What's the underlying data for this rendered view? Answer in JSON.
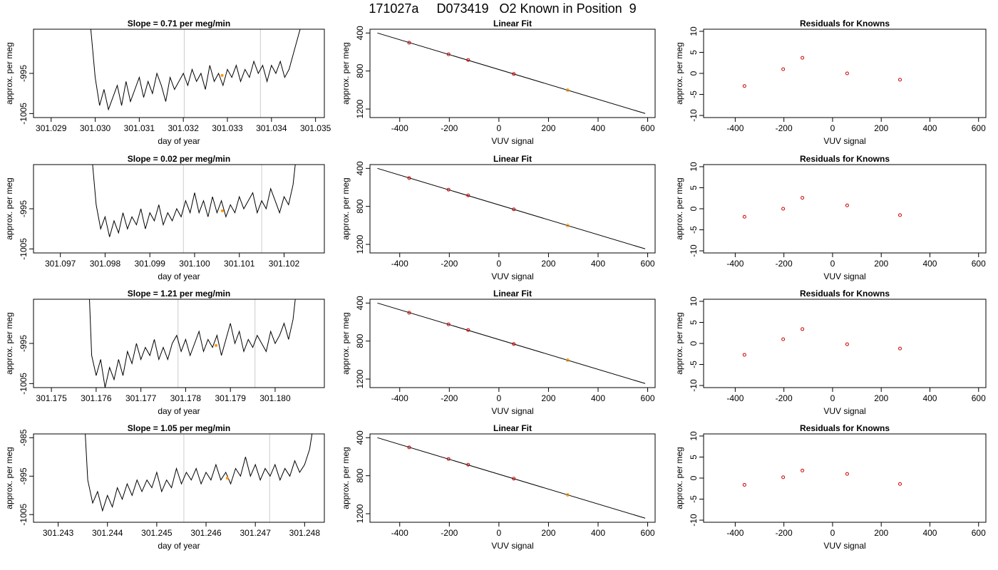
{
  "header": {
    "title": "171027a     D073419   O2 Known in Position  9"
  },
  "colors": {
    "frame": "#000000",
    "trace": "#000000",
    "fit_line": "#000000",
    "vertical_marker": "#cccccc",
    "known_points": "#cc0000",
    "highlight_point": "#ff9900"
  },
  "chart_data": [
    {
      "type": "line",
      "title": "Slope =  0.71  per meg/min",
      "xlabel": "day of year",
      "ylabel": "approx. per meg",
      "xlim": [
        301.0286,
        301.0352
      ],
      "ylim": [
        -1006,
        -984
      ],
      "xticks": [
        301.029,
        301.03,
        301.031,
        301.032,
        301.033,
        301.034,
        301.035
      ],
      "xtick_labels": [
        "301.029",
        "301.030",
        "301.031",
        "301.032",
        "301.033",
        "301.034",
        "301.035"
      ],
      "yticks": [
        -1005,
        -995
      ],
      "ytick_labels": [
        "-1005",
        "-995"
      ],
      "vlines": [
        301.03202,
        301.03375
      ],
      "highlight": {
        "x": 301.03288,
        "y": -995.5
      },
      "x": [
        301.0299,
        301.03,
        301.0301,
        301.0302,
        301.0303,
        301.0304,
        301.0305,
        301.0306,
        301.0307,
        301.0308,
        301.0309,
        301.031,
        301.0311,
        301.0312,
        301.0313,
        301.0314,
        301.0315,
        301.0316,
        301.0317,
        301.0318,
        301.0319,
        301.032,
        301.0321,
        301.0322,
        301.0323,
        301.0324,
        301.0325,
        301.0326,
        301.0327,
        301.0328,
        301.0329,
        301.033,
        301.0331,
        301.0332,
        301.0333,
        301.0334,
        301.0335,
        301.0336,
        301.0337,
        301.0338,
        301.0339,
        301.034,
        301.0341,
        301.0342,
        301.0343,
        301.0344,
        301.0345,
        301.0346,
        301.03465
      ],
      "y": [
        -984,
        -996,
        -1003,
        -999,
        -1004,
        -1001,
        -998,
        -1003,
        -997,
        -1002,
        -999,
        -996,
        -1001,
        -997,
        -1000,
        -995,
        -998,
        -1002,
        -996,
        -999,
        -997,
        -995,
        -998,
        -994,
        -997,
        -995,
        -999,
        -993,
        -997,
        -995,
        -998,
        -994,
        -996,
        -993,
        -997,
        -994,
        -996,
        -992,
        -995,
        -993,
        -997,
        -993,
        -995,
        -992,
        -996,
        -994,
        -990,
        -986,
        -984
      ]
    },
    {
      "type": "scatter",
      "title": "Linear Fit",
      "xlabel": "VUV signal",
      "ylabel": "approx. per meg",
      "xlim": [
        -520,
        630
      ],
      "ylim": [
        -1290,
        -360
      ],
      "xticks": [
        -400,
        -200,
        0,
        200,
        400,
        600
      ],
      "xtick_labels": [
        "-400",
        "-200",
        "0",
        "200",
        "400",
        "600"
      ],
      "yticks": [
        -1200,
        -800,
        -400
      ],
      "ytick_labels": [
        "1200",
        "800",
        "400"
      ],
      "fit_line": {
        "x": [
          -490,
          590
        ],
        "y": [
          -400,
          -1247
        ]
      },
      "points": [
        {
          "x": -362,
          "y": -502
        },
        {
          "x": -203,
          "y": -624
        },
        {
          "x": -124,
          "y": -684
        },
        {
          "x": 60,
          "y": -831
        },
        {
          "x": 277,
          "y": -1001,
          "highlight": true
        }
      ]
    },
    {
      "type": "scatter",
      "title": "Residuals for Knowns",
      "xlabel": "VUV signal",
      "ylabel": "approx. per meg",
      "xlim": [
        -530,
        630
      ],
      "ylim": [
        -10.5,
        10.5
      ],
      "xticks": [
        -400,
        -200,
        0,
        200,
        400,
        600
      ],
      "xtick_labels": [
        "-400",
        "-200",
        "0",
        "200",
        "400",
        "600"
      ],
      "yticks": [
        -10,
        -5,
        0,
        5,
        10
      ],
      "ytick_labels": [
        "-10",
        "-5",
        "0",
        "5",
        "10"
      ],
      "points": [
        {
          "x": -362,
          "y": -3.0
        },
        {
          "x": -203,
          "y": 1.0
        },
        {
          "x": -124,
          "y": 3.7
        },
        {
          "x": 60,
          "y": 0.0
        },
        {
          "x": 277,
          "y": -1.5
        }
      ]
    },
    {
      "type": "line",
      "title": "Slope =  0.02  per meg/min",
      "xlabel": "day of year",
      "ylabel": "approx. per meg",
      "xlim": [
        301.0964,
        301.1029
      ],
      "ylim": [
        -1006,
        -984
      ],
      "xticks": [
        301.097,
        301.098,
        301.099,
        301.1,
        301.101,
        301.102
      ],
      "xtick_labels": [
        "301.097",
        "301.098",
        "301.099",
        "301.100",
        "301.101",
        "301.102"
      ],
      "yticks": [
        -1005,
        -995
      ],
      "ytick_labels": [
        "-1005",
        "-995"
      ],
      "vlines": [
        301.09975,
        301.1015
      ],
      "highlight": {
        "x": 301.10062,
        "y": -995.5
      },
      "x": [
        301.09772,
        301.0978,
        301.0979,
        301.098,
        301.0981,
        301.0982,
        301.0983,
        301.0984,
        301.0985,
        301.0986,
        301.0987,
        301.0988,
        301.0989,
        301.099,
        301.0991,
        301.0992,
        301.0993,
        301.0994,
        301.0995,
        301.0996,
        301.0997,
        301.0998,
        301.0999,
        301.1,
        301.1001,
        301.1002,
        301.1003,
        301.1004,
        301.1005,
        301.1006,
        301.1007,
        301.1008,
        301.1009,
        301.101,
        301.1011,
        301.1012,
        301.1013,
        301.1014,
        301.1015,
        301.1016,
        301.1017,
        301.1018,
        301.1019,
        301.102,
        301.1021,
        301.1022,
        301.10225
      ],
      "y": [
        -984,
        -994,
        -1000,
        -997,
        -1002,
        -998,
        -1001,
        -996,
        -1000,
        -997,
        -999,
        -995,
        -1000,
        -996,
        -998,
        -994,
        -999,
        -996,
        -998,
        -995,
        -997,
        -993,
        -996,
        -991,
        -996,
        -993,
        -997,
        -992,
        -996,
        -993,
        -997,
        -994,
        -996,
        -992,
        -995,
        -993,
        -991,
        -996,
        -993,
        -995,
        -990,
        -993,
        -996,
        -992,
        -994,
        -989,
        -984
      ]
    },
    {
      "type": "scatter",
      "title": "Linear Fit",
      "xlabel": "VUV signal",
      "ylabel": "approx. per meg",
      "xlim": [
        -520,
        630
      ],
      "ylim": [
        -1290,
        -360
      ],
      "xticks": [
        -400,
        -200,
        0,
        200,
        400,
        600
      ],
      "xtick_labels": [
        "-400",
        "-200",
        "0",
        "200",
        "400",
        "600"
      ],
      "yticks": [
        -1200,
        -800,
        -400
      ],
      "ytick_labels": [
        "1200",
        "800",
        "400"
      ],
      "fit_line": {
        "x": [
          -490,
          590
        ],
        "y": [
          -400,
          -1247
        ]
      },
      "points": [
        {
          "x": -362,
          "y": -502
        },
        {
          "x": -203,
          "y": -624
        },
        {
          "x": -124,
          "y": -684
        },
        {
          "x": 60,
          "y": -831
        },
        {
          "x": 277,
          "y": -1001,
          "highlight": true
        }
      ]
    },
    {
      "type": "scatter",
      "title": "Residuals for Knowns",
      "xlabel": "VUV signal",
      "ylabel": "approx. per meg",
      "xlim": [
        -530,
        630
      ],
      "ylim": [
        -10.5,
        10.5
      ],
      "xticks": [
        -400,
        -200,
        0,
        200,
        400,
        600
      ],
      "xtick_labels": [
        "-400",
        "-200",
        "0",
        "200",
        "400",
        "600"
      ],
      "yticks": [
        -10,
        -5,
        0,
        5,
        10
      ],
      "ytick_labels": [
        "-10",
        "-5",
        "0",
        "5",
        "10"
      ],
      "points": [
        {
          "x": -362,
          "y": -1.9
        },
        {
          "x": -203,
          "y": 0.0
        },
        {
          "x": -124,
          "y": 2.6
        },
        {
          "x": 60,
          "y": 0.8
        },
        {
          "x": 277,
          "y": -1.5
        }
      ]
    },
    {
      "type": "line",
      "title": "Slope =  1.21  per meg/min",
      "xlabel": "day of year",
      "ylabel": "approx. per meg",
      "xlim": [
        301.1746,
        301.1811
      ],
      "ylim": [
        -1006,
        -984
      ],
      "xticks": [
        301.175,
        301.176,
        301.177,
        301.178,
        301.179,
        301.18
      ],
      "xtick_labels": [
        "301.175",
        "301.176",
        "301.177",
        "301.178",
        "301.179",
        "301.180"
      ],
      "yticks": [
        -1005,
        -995
      ],
      "ytick_labels": [
        "-1005",
        "-995"
      ],
      "vlines": [
        301.17783,
        301.17955
      ],
      "highlight": {
        "x": 301.17868,
        "y": -995.5
      },
      "x": [
        301.17585,
        301.1759,
        301.176,
        301.1761,
        301.1762,
        301.1763,
        301.1764,
        301.1765,
        301.1766,
        301.1767,
        301.1768,
        301.1769,
        301.177,
        301.1771,
        301.1772,
        301.1773,
        301.1774,
        301.1775,
        301.1776,
        301.1777,
        301.1778,
        301.1779,
        301.178,
        301.1781,
        301.1782,
        301.1783,
        301.1784,
        301.1785,
        301.1786,
        301.1787,
        301.1788,
        301.1789,
        301.179,
        301.1791,
        301.1792,
        301.1793,
        301.1794,
        301.1795,
        301.1796,
        301.1797,
        301.1798,
        301.1799,
        301.18,
        301.1801,
        301.1802,
        301.1803,
        301.1804,
        301.18045
      ],
      "y": [
        -984,
        -998,
        -1003,
        -999,
        -1006,
        -1001,
        -1004,
        -999,
        -1003,
        -997,
        -1000,
        -995,
        -999,
        -996,
        -998,
        -994,
        -999,
        -996,
        -999,
        -995,
        -993,
        -997,
        -994,
        -998,
        -995,
        -992,
        -997,
        -994,
        -996,
        -993,
        -998,
        -994,
        -990,
        -995,
        -992,
        -997,
        -994,
        -996,
        -993,
        -995,
        -997,
        -992,
        -995,
        -993,
        -990,
        -994,
        -989,
        -984
      ]
    },
    {
      "type": "scatter",
      "title": "Linear Fit",
      "xlabel": "VUV signal",
      "ylabel": "approx. per meg",
      "xlim": [
        -520,
        630
      ],
      "ylim": [
        -1290,
        -360
      ],
      "xticks": [
        -400,
        -200,
        0,
        200,
        400,
        600
      ],
      "xtick_labels": [
        "-400",
        "-200",
        "0",
        "200",
        "400",
        "600"
      ],
      "yticks": [
        -1200,
        -800,
        -400
      ],
      "ytick_labels": [
        "1200",
        "800",
        "400"
      ],
      "fit_line": {
        "x": [
          -490,
          590
        ],
        "y": [
          -400,
          -1247
        ]
      },
      "points": [
        {
          "x": -362,
          "y": -502
        },
        {
          "x": -203,
          "y": -624
        },
        {
          "x": -124,
          "y": -684
        },
        {
          "x": 60,
          "y": -831
        },
        {
          "x": 277,
          "y": -1001,
          "highlight": true
        }
      ]
    },
    {
      "type": "scatter",
      "title": "Residuals for Knowns",
      "xlabel": "VUV signal",
      "ylabel": "approx. per meg",
      "xlim": [
        -530,
        630
      ],
      "ylim": [
        -10.5,
        10.5
      ],
      "xticks": [
        -400,
        -200,
        0,
        200,
        400,
        600
      ],
      "xtick_labels": [
        "-400",
        "-200",
        "0",
        "200",
        "400",
        "600"
      ],
      "yticks": [
        -10,
        -5,
        0,
        5,
        10
      ],
      "ytick_labels": [
        "-10",
        "-5",
        "0",
        "5",
        "10"
      ],
      "points": [
        {
          "x": -362,
          "y": -2.7
        },
        {
          "x": -203,
          "y": 1.0
        },
        {
          "x": -124,
          "y": 3.4
        },
        {
          "x": 60,
          "y": -0.2
        },
        {
          "x": 277,
          "y": -1.2
        }
      ]
    },
    {
      "type": "line",
      "title": "Slope =  1.05  per meg/min",
      "xlabel": "day of year",
      "ylabel": "approx. per meg",
      "xlim": [
        301.2425,
        301.2484
      ],
      "ylim": [
        -1007,
        -984
      ],
      "xticks": [
        301.243,
        301.244,
        301.245,
        301.246,
        301.247,
        301.248
      ],
      "xtick_labels": [
        "301.243",
        "301.244",
        "301.245",
        "301.246",
        "301.247",
        "301.248"
      ],
      "yticks": [
        -1005,
        -995,
        -985
      ],
      "ytick_labels": [
        "-1005",
        "-995",
        "-985"
      ],
      "vlines": [
        301.24555,
        301.24729
      ],
      "highlight": {
        "x": 301.24643,
        "y": -995.5
      },
      "x": [
        301.24355,
        301.2436,
        301.2437,
        301.2438,
        301.2439,
        301.244,
        301.2441,
        301.2442,
        301.2443,
        301.2444,
        301.2445,
        301.2446,
        301.2447,
        301.2448,
        301.2449,
        301.245,
        301.2451,
        301.2452,
        301.2453,
        301.2454,
        301.2455,
        301.2456,
        301.2457,
        301.2458,
        301.2459,
        301.246,
        301.2461,
        301.2462,
        301.2463,
        301.2464,
        301.2465,
        301.2466,
        301.2467,
        301.2468,
        301.2469,
        301.247,
        301.2471,
        301.2472,
        301.2473,
        301.2474,
        301.2475,
        301.2476,
        301.2477,
        301.2478,
        301.2479,
        301.248,
        301.2481,
        301.24815
      ],
      "y": [
        -984,
        -996,
        -1002,
        -999,
        -1004,
        -1000,
        -1003,
        -998,
        -1001,
        -997,
        -1000,
        -996,
        -999,
        -996,
        -998,
        -994,
        -999,
        -996,
        -998,
        -993,
        -997,
        -994,
        -996,
        -993,
        -997,
        -994,
        -996,
        -992,
        -996,
        -994,
        -997,
        -993,
        -995,
        -990,
        -995,
        -992,
        -996,
        -993,
        -995,
        -992,
        -996,
        -993,
        -995,
        -991,
        -994,
        -992,
        -988,
        -984
      ]
    },
    {
      "type": "scatter",
      "title": "Linear Fit",
      "xlabel": "VUV signal",
      "ylabel": "approx. per meg",
      "xlim": [
        -520,
        630
      ],
      "ylim": [
        -1290,
        -360
      ],
      "xticks": [
        -400,
        -200,
        0,
        200,
        400,
        600
      ],
      "xtick_labels": [
        "-400",
        "-200",
        "0",
        "200",
        "400",
        "600"
      ],
      "yticks": [
        -1200,
        -800,
        -400
      ],
      "ytick_labels": [
        "1200",
        "800",
        "400"
      ],
      "fit_line": {
        "x": [
          -490,
          590
        ],
        "y": [
          -400,
          -1247
        ]
      },
      "points": [
        {
          "x": -362,
          "y": -502
        },
        {
          "x": -203,
          "y": -624
        },
        {
          "x": -124,
          "y": -684
        },
        {
          "x": 60,
          "y": -831
        },
        {
          "x": 277,
          "y": -1001,
          "highlight": true
        }
      ]
    },
    {
      "type": "scatter",
      "title": "Residuals for Knowns",
      "xlabel": "VUV signal",
      "ylabel": "approx. per meg",
      "xlim": [
        -530,
        630
      ],
      "ylim": [
        -10.5,
        10.5
      ],
      "xticks": [
        -400,
        -200,
        0,
        200,
        400,
        600
      ],
      "xtick_labels": [
        "-400",
        "-200",
        "0",
        "200",
        "400",
        "600"
      ],
      "yticks": [
        -10,
        -5,
        0,
        5,
        10
      ],
      "ytick_labels": [
        "-10",
        "-5",
        "0",
        "5",
        "10"
      ],
      "points": [
        {
          "x": -362,
          "y": -1.6
        },
        {
          "x": -203,
          "y": 0.2
        },
        {
          "x": -124,
          "y": 1.8
        },
        {
          "x": 60,
          "y": 1.0
        },
        {
          "x": 277,
          "y": -1.4
        }
      ]
    }
  ]
}
